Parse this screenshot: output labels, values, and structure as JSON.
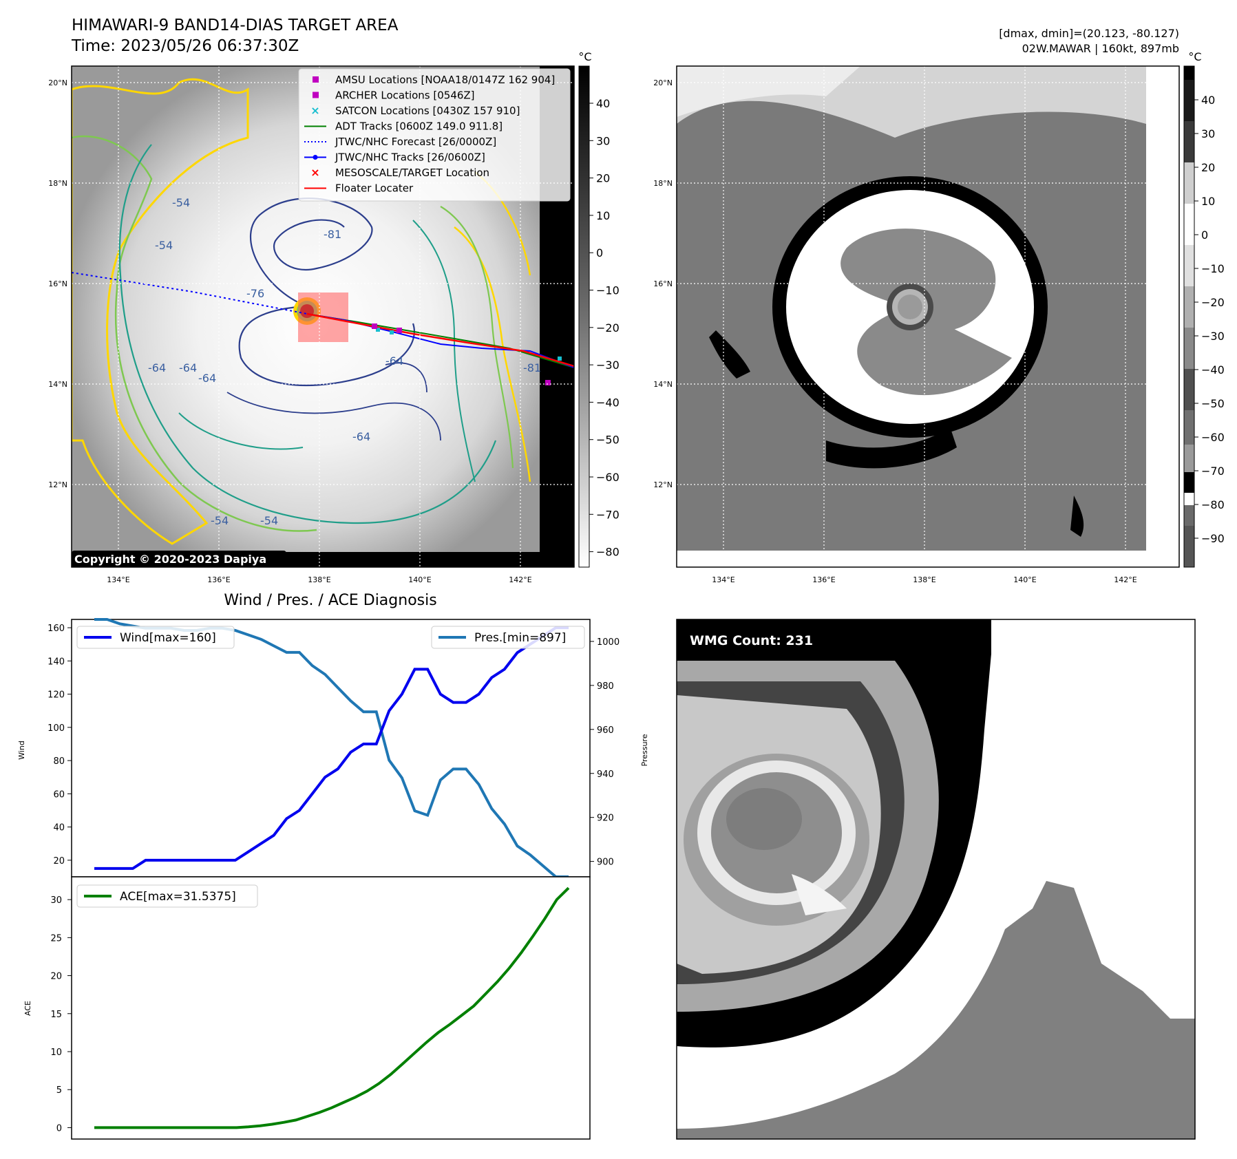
{
  "header": {
    "title": "HIMAWARI-9 BAND14-DIAS TARGET AREA",
    "time": "Time: 2023/05/26 06:37:30Z",
    "dmax_dmin": "[dmax, dmin]=(20.123, -80.127)",
    "storm": "02W.MAWAR | 160kt, 897mb"
  },
  "map": {
    "lat_labels": [
      "20°N",
      "18°N",
      "16°N",
      "14°N",
      "12°N"
    ],
    "lon_labels": [
      "134°E",
      "136°E",
      "138°E",
      "140°E",
      "142°E"
    ],
    "copyright": "Copyright © 2020-2023 Dapiya",
    "contour_labels": [
      "-54",
      "-54",
      "-64",
      "-64",
      "-64",
      "-76",
      "-81",
      "-64",
      "-64",
      "-54",
      "-54",
      "-81"
    ],
    "legend": [
      {
        "label": "AMSU Locations [NOAA18/0147Z 162 904]",
        "marker": "square",
        "color": "#c000c0"
      },
      {
        "label": "ARCHER Locations [0546Z]",
        "marker": "square",
        "color": "#c000c0"
      },
      {
        "label": "SATCON Locations [0430Z 157 910]",
        "marker": "x",
        "color": "#17becf"
      },
      {
        "label": "ADT Tracks [0600Z 149.0 911.8]",
        "marker": "line",
        "color": "#008000"
      },
      {
        "label": "JTWC/NHC Forecast [26/0000Z]",
        "marker": "dotted",
        "color": "#0000ff"
      },
      {
        "label": "JTWC/NHC Tracks [26/0600Z]",
        "marker": "line-dot",
        "color": "#0000ff"
      },
      {
        "label": "MESOSCALE/TARGET Location",
        "marker": "x",
        "color": "#ff0000"
      },
      {
        "label": "Floater Locater",
        "marker": "line",
        "color": "#ff0000"
      }
    ]
  },
  "colorbar1": {
    "unit": "°C",
    "ticks": [
      "40",
      "30",
      "20",
      "10",
      "0",
      "−10",
      "−20",
      "−30",
      "−40",
      "−50",
      "−60",
      "−70",
      "−80"
    ]
  },
  "colorbar2": {
    "unit": "°C",
    "ticks": [
      "40",
      "30",
      "20",
      "10",
      "0",
      "−10",
      "−20",
      "−30",
      "−40",
      "−50",
      "−60",
      "−70",
      "−80",
      "−90"
    ]
  },
  "wind_panel": {
    "title": "Wind / Pres. / ACE Diagnosis",
    "wind_label": "Wind",
    "pres_label": "Pressure"
  },
  "ace_panel": {
    "ylabel": "ACE"
  },
  "wmg": {
    "label": "WMG Count: 231"
  },
  "colors": {
    "wind": "#0000ee",
    "pressure": "#1f77b4",
    "ace": "#008000"
  },
  "chart_data": [
    {
      "type": "line",
      "title": "Wind / Pres. / ACE Diagnosis",
      "ylabel": "Wind",
      "y2label": "Pressure",
      "ylim": [
        10,
        165
      ],
      "y2lim": [
        893,
        1010
      ],
      "yticks": [
        20,
        40,
        60,
        80,
        100,
        120,
        140,
        160
      ],
      "y2ticks": [
        900,
        920,
        940,
        960,
        980,
        1000
      ],
      "series": [
        {
          "name": "Wind[max=160]",
          "axis": "left",
          "values": [
            15,
            15,
            15,
            15,
            20,
            20,
            20,
            20,
            20,
            20,
            20,
            20,
            25,
            30,
            35,
            45,
            50,
            60,
            70,
            75,
            85,
            90,
            90,
            110,
            120,
            135,
            135,
            120,
            115,
            115,
            120,
            130,
            135,
            145,
            150,
            155,
            160,
            160
          ]
        },
        {
          "name": "Pres.[min=897]",
          "axis": "right",
          "values": [
            1010,
            1010,
            1008,
            1007,
            1006,
            1006,
            1006,
            1005,
            1005,
            1006,
            1006,
            1005,
            1003,
            1001,
            998,
            995,
            995,
            989,
            985,
            979,
            973,
            968,
            968,
            946,
            938,
            923,
            921,
            937,
            942,
            942,
            935,
            924,
            917,
            907,
            903,
            898,
            893,
            893
          ]
        }
      ]
    },
    {
      "type": "line",
      "ylabel": "ACE",
      "ylim": [
        -1.5,
        33
      ],
      "yticks": [
        0,
        5,
        10,
        15,
        20,
        25,
        30
      ],
      "series": [
        {
          "name": "ACE[max=31.5375]",
          "values": [
            0,
            0,
            0,
            0,
            0,
            0,
            0,
            0,
            0,
            0,
            0,
            0,
            0,
            0.1,
            0.25,
            0.45,
            0.7,
            1.0,
            1.5,
            2.0,
            2.6,
            3.3,
            4.0,
            4.8,
            5.8,
            7.0,
            8.4,
            9.8,
            11.2,
            12.5,
            13.6,
            14.8,
            16.0,
            17.6,
            19.2,
            21.0,
            23.0,
            25.2,
            27.5,
            30.0,
            31.5375
          ]
        }
      ]
    }
  ]
}
